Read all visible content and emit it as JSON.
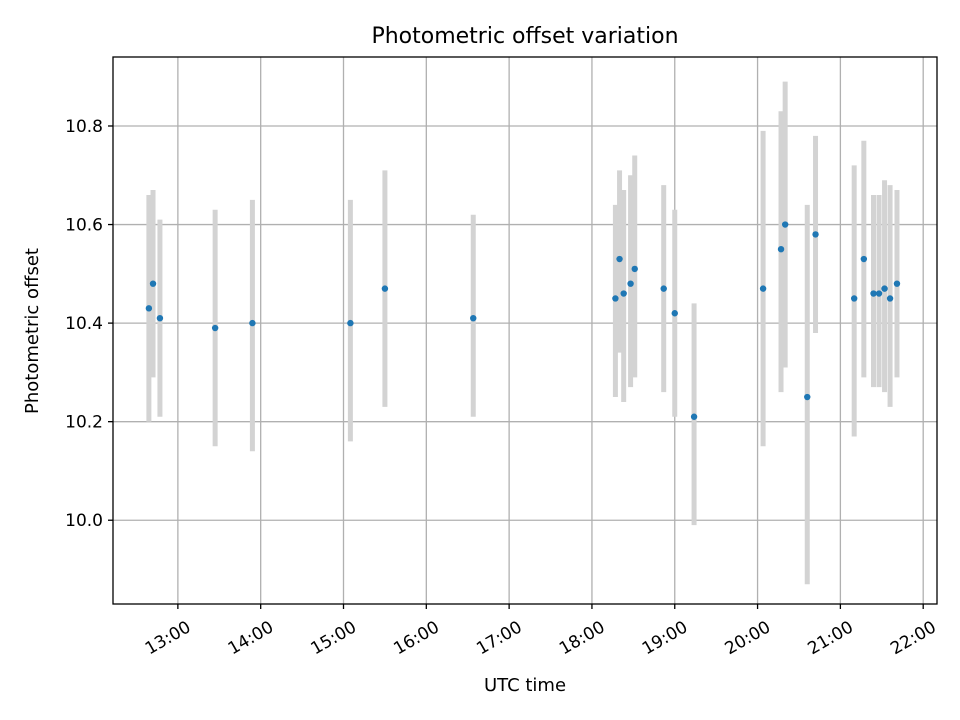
{
  "chart_data": {
    "type": "scatter",
    "title": "Photometric offset variation",
    "xlabel": "UTC time",
    "ylabel": "Photometric offset",
    "x_ticks": [
      "13:00",
      "14:00",
      "15:00",
      "16:00",
      "17:00",
      "18:00",
      "19:00",
      "20:00",
      "21:00",
      "22:00"
    ],
    "y_ticks": [
      "10.0",
      "10.2",
      "10.4",
      "10.6",
      "10.8"
    ],
    "xlim": [
      "12:13",
      "22:10"
    ],
    "ylim": [
      9.83,
      10.94
    ],
    "grid": true,
    "series": [
      {
        "color": "#1f77b4",
        "errorbar_color": "#d3d3d3",
        "points": [
          {
            "x": "12:39",
            "y": 10.43,
            "low": 10.2,
            "high": 10.66
          },
          {
            "x": "12:42",
            "y": 10.48,
            "low": 10.29,
            "high": 10.67
          },
          {
            "x": "12:47",
            "y": 10.41,
            "low": 10.21,
            "high": 10.61
          },
          {
            "x": "13:27",
            "y": 10.39,
            "low": 10.15,
            "high": 10.63
          },
          {
            "x": "13:54",
            "y": 10.4,
            "low": 10.14,
            "high": 10.65
          },
          {
            "x": "15:05",
            "y": 10.4,
            "low": 10.16,
            "high": 10.65
          },
          {
            "x": "15:30",
            "y": 10.47,
            "low": 10.23,
            "high": 10.71
          },
          {
            "x": "16:34",
            "y": 10.41,
            "low": 10.21,
            "high": 10.62
          },
          {
            "x": "18:17",
            "y": 10.45,
            "low": 10.25,
            "high": 10.64
          },
          {
            "x": "18:20",
            "y": 10.53,
            "low": 10.34,
            "high": 10.71
          },
          {
            "x": "18:23",
            "y": 10.46,
            "low": 10.24,
            "high": 10.67
          },
          {
            "x": "18:28",
            "y": 10.48,
            "low": 10.27,
            "high": 10.7
          },
          {
            "x": "18:31",
            "y": 10.51,
            "low": 10.29,
            "high": 10.74
          },
          {
            "x": "18:52",
            "y": 10.47,
            "low": 10.26,
            "high": 10.68
          },
          {
            "x": "19:00",
            "y": 10.42,
            "low": 10.21,
            "high": 10.63
          },
          {
            "x": "19:14",
            "y": 10.21,
            "low": 9.99,
            "high": 10.44
          },
          {
            "x": "20:04",
            "y": 10.47,
            "low": 10.15,
            "high": 10.79
          },
          {
            "x": "20:17",
            "y": 10.55,
            "low": 10.26,
            "high": 10.83
          },
          {
            "x": "20:20",
            "y": 10.6,
            "low": 10.31,
            "high": 10.89
          },
          {
            "x": "20:36",
            "y": 10.25,
            "low": 9.87,
            "high": 10.64
          },
          {
            "x": "20:42",
            "y": 10.58,
            "low": 10.38,
            "high": 10.78
          },
          {
            "x": "21:10",
            "y": 10.45,
            "low": 10.17,
            "high": 10.72
          },
          {
            "x": "21:17",
            "y": 10.53,
            "low": 10.29,
            "high": 10.77
          },
          {
            "x": "21:24",
            "y": 10.46,
            "low": 10.27,
            "high": 10.66
          },
          {
            "x": "21:28",
            "y": 10.46,
            "low": 10.27,
            "high": 10.66
          },
          {
            "x": "21:32",
            "y": 10.47,
            "low": 10.26,
            "high": 10.69
          },
          {
            "x": "21:36",
            "y": 10.45,
            "low": 10.23,
            "high": 10.68
          },
          {
            "x": "21:41",
            "y": 10.48,
            "low": 10.29,
            "high": 10.67
          }
        ]
      }
    ]
  }
}
